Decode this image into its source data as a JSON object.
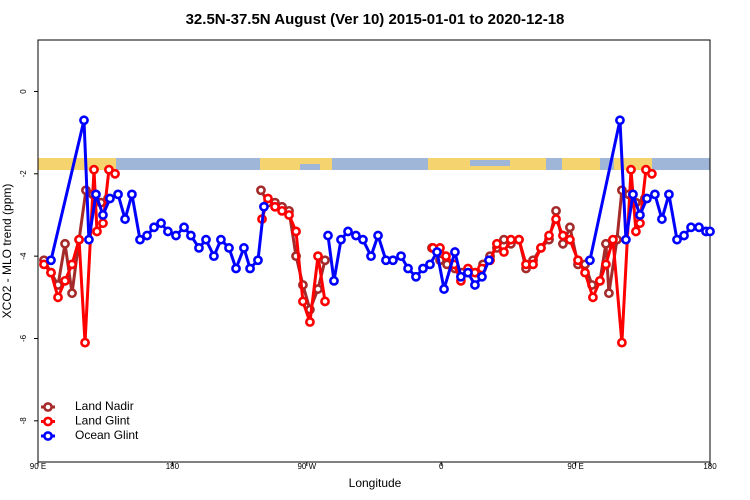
{
  "chart_data": {
    "type": "line",
    "title": "32.5N-37.5N August (Ver 10)   2015-01-01 to 2020-12-18",
    "xlabel": "Longitude",
    "ylabel": "XCO2 - MLO trend (ppm)",
    "xlim": [
      90,
      540
    ],
    "ylim": [
      -9.0,
      1.25
    ],
    "xticks": [
      {
        "value": 90,
        "label": "90 E"
      },
      180,
      {
        "value": 270,
        "label": "90 W"
      },
      {
        "value": 360,
        "label": "0"
      },
      {
        "value": 450,
        "label": "90 E"
      },
      {
        "value": 540,
        "label": "180"
      }
    ],
    "yticks": [
      -8,
      -6,
      -4,
      -2,
      0
    ],
    "legend": "bottom-left",
    "series": [
      {
        "name": "Land Nadir",
        "color": "#a52a2a",
        "x": [
          94,
          98.7,
          103.4,
          108.1,
          112.8,
          117.5,
          122.1,
          126.8,
          132.2,
          136.9,
          null,
          239.3,
          244,
          248.7,
          253.4,
          258.1,
          262.8,
          267.4,
          272.1,
          277.5,
          282.2,
          null,
          353.8,
          359.2,
          363.9,
          369.2,
          373.9,
          377.9,
          383.3,
          388,
          392.7,
          397.3,
          402,
          406.7,
          412.1,
          416.8,
          421.5,
          426.8,
          432.2,
          436.9,
          441.5,
          446.2,
          451.6,
          456.3,
          461,
          466.3,
          470.3,
          472.3,
          477.7,
          481,
          485.7,
          490.4,
          496.4
        ],
        "values": [
          -4.1,
          -4.4,
          -4.7,
          -3.7,
          -4.9,
          -3.6,
          -2.4,
          -2.5,
          -2.7,
          -2.6,
          null,
          -2.4,
          -2.7,
          -2.7,
          -2.8,
          -2.9,
          -4.0,
          -4.7,
          -5.3,
          -4.8,
          -4.1,
          null,
          -3.8,
          -4.1,
          -4.2,
          -4.3,
          -4.4,
          -4.4,
          -4.4,
          -4.2,
          -4.0,
          -3.8,
          -3.6,
          -3.7,
          -3.6,
          -4.3,
          -4.1,
          -3.8,
          -3.6,
          -2.9,
          -3.7,
          -3.3,
          -4.2,
          -4.2,
          -4.7,
          -4.6,
          -3.7,
          -4.9,
          -3.6,
          -2.4,
          -2.5,
          -2.7,
          -2.6
        ]
      },
      {
        "name": "Land Glint",
        "color": "#ff0000",
        "x": [
          94,
          98.7,
          103.4,
          108.1,
          112.8,
          117.5,
          121.5,
          127.5,
          129.5,
          133.5,
          137.5,
          141.6,
          null,
          240,
          244,
          248.7,
          253.4,
          258.1,
          262.8,
          267.4,
          272.1,
          277.5,
          282.2,
          null,
          354.5,
          359.2,
          363.2,
          368.6,
          373.2,
          377.9,
          382.6,
          387.3,
          392.7,
          397.3,
          402,
          406.7,
          412.1,
          416.8,
          421.5,
          426.8,
          432.2,
          436.9,
          441.5,
          446.2,
          451.6,
          456.3,
          461.6,
          466.3,
          470.3,
          475,
          481,
          487.1,
          490.4,
          493.1,
          497.1,
          501.1
        ],
        "values": [
          -4.2,
          -4.4,
          -5.0,
          -4.6,
          -4.2,
          -3.6,
          -6.1,
          -1.9,
          -3.4,
          -3.2,
          -1.9,
          -2.0,
          null,
          -3.1,
          -2.6,
          -2.8,
          -2.9,
          -3.0,
          -3.4,
          -5.1,
          -5.6,
          -4.0,
          -5.1,
          null,
          -3.8,
          -3.8,
          -4.0,
          -4.2,
          -4.6,
          -4.3,
          -4.4,
          -4.3,
          -4.1,
          -3.7,
          -3.9,
          -3.6,
          -3.6,
          -4.2,
          -4.2,
          -3.8,
          -3.5,
          -3.1,
          -3.5,
          -3.6,
          -4.1,
          -4.4,
          -5.0,
          -4.6,
          -4.2,
          -3.6,
          -6.1,
          -1.9,
          -3.4,
          -3.2,
          -1.9,
          -2.0
        ]
      },
      {
        "name": "Ocean Glint",
        "color": "#0000ff",
        "x": [
          98.7,
          120.8,
          124.1,
          128.8,
          133.5,
          138.2,
          143.6,
          148.3,
          152.9,
          158.3,
          163,
          167.7,
          172.4,
          177,
          182.4,
          187.8,
          192.4,
          197.8,
          202.5,
          207.8,
          212.5,
          217.9,
          222.6,
          227.9,
          232,
          237.3,
          241.3,
          null,
          284.2,
          288.2,
          292.9,
          297.6,
          302.9,
          307.6,
          313,
          317.7,
          323,
          327.7,
          333.1,
          337.8,
          343.1,
          347.8,
          352.5,
          357.2,
          361.9,
          369.2,
          373.2,
          377.9,
          382.6,
          387.3,
          392,
          null,
          459.6,
          479.7,
          483.7,
          488.4,
          493.1,
          497.8,
          503.1,
          507.8,
          512.5,
          517.9,
          522.6,
          527.3,
          532.6,
          537.3,
          540
        ],
        "values": [
          -4.1,
          -0.7,
          -3.6,
          -2.5,
          -3.0,
          -2.6,
          -2.5,
          -3.1,
          -2.5,
          -3.6,
          -3.5,
          -3.3,
          -3.2,
          -3.4,
          -3.5,
          -3.3,
          -3.5,
          -3.8,
          -3.6,
          -4.0,
          -3.6,
          -3.8,
          -4.3,
          -3.8,
          -4.3,
          -4.1,
          -2.8,
          null,
          -3.5,
          -4.6,
          -3.6,
          -3.4,
          -3.5,
          -3.6,
          -4.0,
          -3.5,
          -4.1,
          -4.1,
          -4.0,
          -4.3,
          -4.5,
          -4.3,
          -4.2,
          -3.9,
          -4.8,
          -3.9,
          -4.5,
          -4.4,
          -4.7,
          -4.5,
          -4.1,
          null,
          -4.1,
          -0.7,
          -3.6,
          -2.5,
          -3.0,
          -2.6,
          -2.5,
          -3.1,
          -2.5,
          -3.6,
          -3.5,
          -3.3,
          -3.3,
          -3.4,
          -3.4
        ]
      }
    ]
  }
}
